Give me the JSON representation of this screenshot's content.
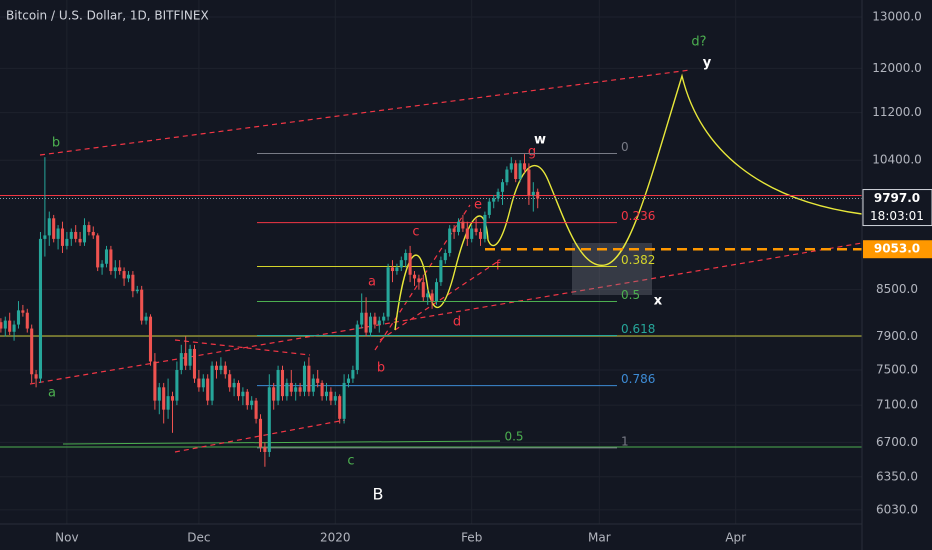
{
  "chart_data": {
    "type": "candlestick",
    "title": "Bitcoin / U.S. Dollar, 1D, BITFINEX",
    "log_scale": true,
    "grid": true,
    "up_color": "#26a69a",
    "down_color": "#ef5350",
    "xlim": [
      -15.2,
      180.7
    ],
    "ylim": [
      5665,
      13350
    ],
    "xticks": [
      {
        "value": 0,
        "label": "Nov"
      },
      {
        "value": 30,
        "label": "Dec"
      },
      {
        "value": 61,
        "label": "2020"
      },
      {
        "value": 92,
        "label": "Feb"
      },
      {
        "value": 121,
        "label": "Mar"
      },
      {
        "value": 152,
        "label": "Apr"
      }
    ],
    "yticks": [
      {
        "value": 13000,
        "label": "13000.0"
      },
      {
        "value": 12000,
        "label": "12000.0"
      },
      {
        "value": 11200,
        "label": "11200.0"
      },
      {
        "value": 10400,
        "label": "10400.0"
      },
      {
        "value": 8500,
        "label": "8500.0"
      },
      {
        "value": 7900,
        "label": "7900.0"
      },
      {
        "value": 7500,
        "label": "7500.0"
      },
      {
        "value": 7100,
        "label": "7100.0"
      },
      {
        "value": 6700,
        "label": "6700.0"
      },
      {
        "value": 6350,
        "label": "6350.0"
      },
      {
        "value": 6030,
        "label": "6030.0"
      }
    ],
    "last_price": {
      "value": 9797,
      "label": "9797.0",
      "countdown": "18:03:01"
    },
    "level": {
      "value": 9053,
      "label": "9053.0",
      "color": "#ff9800"
    },
    "fib_levels": [
      {
        "label": "0",
        "price": 10509,
        "color": "#787b86"
      },
      {
        "label": "0.236",
        "price": 9437,
        "color": "#f23645"
      },
      {
        "label": "0.382",
        "price": 8812,
        "color": "#d4d42a"
      },
      {
        "label": "0.5",
        "price": 8344,
        "color": "#4caf50"
      },
      {
        "label": "0.618",
        "price": 7914,
        "color": "#26a69a"
      },
      {
        "label": "0.786",
        "price": 7319,
        "color": "#3d8bd4"
      },
      {
        "label": "1",
        "price": 6643,
        "color": "#787b86"
      }
    ],
    "annotations": [
      "b",
      "a",
      "c",
      "B",
      "a",
      "b",
      "c",
      "d",
      "e",
      "f",
      "g",
      "w",
      "x",
      "y",
      "d?",
      "0.5"
    ],
    "x": [
      -15,
      -14,
      -13,
      -12,
      -11,
      -10,
      -9,
      -8,
      -7,
      -6,
      -5,
      -4,
      -3,
      -2,
      -1,
      0,
      1,
      2,
      3,
      4,
      5,
      6,
      7,
      8,
      9,
      10,
      11,
      12,
      13,
      14,
      15,
      16,
      17,
      18,
      19,
      20,
      21,
      22,
      23,
      24,
      25,
      26,
      27,
      28,
      29,
      30,
      31,
      32,
      33,
      34,
      35,
      36,
      37,
      38,
      39,
      40,
      41,
      42,
      43,
      44,
      45,
      46,
      47,
      48,
      49,
      50,
      51,
      52,
      53,
      54,
      55,
      56,
      57,
      58,
      59,
      60,
      61,
      62,
      63,
      64,
      65,
      66,
      67,
      68,
      69,
      70,
      71,
      72,
      73,
      74,
      75,
      76,
      77,
      78,
      79,
      80,
      81,
      82,
      83,
      84,
      85,
      86,
      87,
      88,
      89,
      90,
      91,
      92,
      93,
      94,
      95,
      96,
      97,
      98,
      99,
      100,
      101,
      102,
      103,
      104,
      105,
      106,
      107
    ],
    "ohlc": [
      [
        8080,
        8130,
        7950,
        8000
      ],
      [
        8000,
        8150,
        7900,
        8100
      ],
      [
        8100,
        8200,
        7920,
        7960
      ],
      [
        7960,
        8100,
        7850,
        8050
      ],
      [
        8050,
        8350,
        8000,
        8230
      ],
      [
        8230,
        8300,
        8150,
        8200
      ],
      [
        8200,
        8250,
        7950,
        8000
      ],
      [
        8000,
        8050,
        7350,
        7450
      ],
      [
        7450,
        7500,
        7300,
        7400
      ],
      [
        7400,
        9300,
        7350,
        9200
      ],
      [
        9200,
        10450,
        8950,
        9250
      ],
      [
        9250,
        9600,
        9100,
        9500
      ],
      [
        9500,
        9550,
        9150,
        9200
      ],
      [
        9200,
        9400,
        9050,
        9350
      ],
      [
        9350,
        9450,
        9000,
        9100
      ],
      [
        9100,
        9300,
        9050,
        9200
      ],
      [
        9200,
        9350,
        9100,
        9300
      ],
      [
        9300,
        9400,
        9150,
        9200
      ],
      [
        9200,
        9300,
        9100,
        9150
      ],
      [
        9150,
        9500,
        9100,
        9400
      ],
      [
        9400,
        9450,
        9250,
        9300
      ],
      [
        9300,
        9380,
        9200,
        9250
      ],
      [
        9250,
        9280,
        8750,
        8800
      ],
      [
        8800,
        8900,
        8700,
        8850
      ],
      [
        8850,
        9100,
        8800,
        9050
      ],
      [
        9050,
        9100,
        8700,
        8750
      ],
      [
        8750,
        8900,
        8650,
        8800
      ],
      [
        8800,
        8900,
        8700,
        8750
      ],
      [
        8750,
        8800,
        8550,
        8650
      ],
      [
        8650,
        8750,
        8600,
        8700
      ],
      [
        8700,
        8750,
        8400,
        8480
      ],
      [
        8480,
        8550,
        8450,
        8500
      ],
      [
        8500,
        8550,
        8050,
        8100
      ],
      [
        8100,
        8200,
        8050,
        8150
      ],
      [
        8150,
        8180,
        7550,
        7600
      ],
      [
        7600,
        7700,
        7050,
        7150
      ],
      [
        7150,
        7350,
        7000,
        7300
      ],
      [
        7300,
        7350,
        6900,
        7050
      ],
      [
        7050,
        7400,
        6950,
        7200
      ],
      [
        7200,
        7250,
        6800,
        7150
      ],
      [
        7150,
        7600,
        7100,
        7500
      ],
      [
        7500,
        7800,
        7450,
        7700
      ],
      [
        7700,
        7900,
        7500,
        7550
      ],
      [
        7550,
        7800,
        7500,
        7750
      ],
      [
        7750,
        7800,
        7350,
        7400
      ],
      [
        7400,
        7500,
        7250,
        7300
      ],
      [
        7300,
        7450,
        7250,
        7400
      ],
      [
        7400,
        7450,
        7100,
        7150
      ],
      [
        7150,
        7600,
        7100,
        7550
      ],
      [
        7550,
        7600,
        7400,
        7500
      ],
      [
        7500,
        7650,
        7450,
        7550
      ],
      [
        7550,
        7600,
        7400,
        7450
      ],
      [
        7450,
        7500,
        7250,
        7300
      ],
      [
        7300,
        7400,
        7200,
        7350
      ],
      [
        7350,
        7380,
        7150,
        7200
      ],
      [
        7200,
        7300,
        7100,
        7250
      ],
      [
        7250,
        7280,
        7050,
        7100
      ],
      [
        7100,
        7200,
        7050,
        7150
      ],
      [
        7150,
        7180,
        6900,
        6950
      ],
      [
        6950,
        7000,
        6600,
        6650
      ],
      [
        6650,
        6700,
        6450,
        6600
      ],
      [
        6600,
        7450,
        6550,
        7300
      ],
      [
        7300,
        7350,
        7050,
        7150
      ],
      [
        7150,
        7550,
        7100,
        7500
      ],
      [
        7500,
        7550,
        7150,
        7200
      ],
      [
        7200,
        7400,
        7150,
        7350
      ],
      [
        7350,
        7500,
        7200,
        7250
      ],
      [
        7250,
        7350,
        7150,
        7300
      ],
      [
        7300,
        7350,
        7200,
        7250
      ],
      [
        7250,
        7600,
        7200,
        7550
      ],
      [
        7550,
        7650,
        7200,
        7250
      ],
      [
        7250,
        7450,
        7200,
        7400
      ],
      [
        7400,
        7500,
        7300,
        7350
      ],
      [
        7350,
        7380,
        7150,
        7200
      ],
      [
        7200,
        7350,
        7150,
        7250
      ],
      [
        7250,
        7300,
        7100,
        7150
      ],
      [
        7150,
        7250,
        7100,
        7200
      ],
      [
        7200,
        7220,
        6900,
        6950
      ],
      [
        6950,
        7450,
        6900,
        7350
      ],
      [
        7350,
        7450,
        7300,
        7400
      ],
      [
        7400,
        7550,
        7350,
        7500
      ],
      [
        7500,
        8100,
        7450,
        8050
      ],
      [
        8050,
        8450,
        8000,
        8200
      ],
      [
        8200,
        8400,
        7900,
        7950
      ],
      [
        7950,
        8200,
        7900,
        8150
      ],
      [
        8150,
        8200,
        8000,
        8050
      ],
      [
        8050,
        8150,
        7950,
        8100
      ],
      [
        8100,
        8200,
        8050,
        8150
      ],
      [
        8150,
        8850,
        8100,
        8800
      ],
      [
        8800,
        8900,
        8600,
        8750
      ],
      [
        8750,
        8850,
        8700,
        8800
      ],
      [
        8800,
        8950,
        8750,
        8900
      ],
      [
        8900,
        9050,
        8800,
        9000
      ],
      [
        9000,
        9100,
        8600,
        8700
      ],
      [
        8700,
        8750,
        8550,
        8650
      ],
      [
        8650,
        8700,
        8500,
        8600
      ],
      [
        8600,
        8700,
        8350,
        8400
      ],
      [
        8400,
        8500,
        8300,
        8450
      ],
      [
        8450,
        8500,
        8250,
        8350
      ],
      [
        8350,
        8650,
        8300,
        8600
      ],
      [
        8600,
        8950,
        8550,
        8900
      ],
      [
        8900,
        9050,
        8850,
        9000
      ],
      [
        9000,
        9400,
        8950,
        9350
      ],
      [
        9350,
        9400,
        9200,
        9300
      ],
      [
        9300,
        9500,
        9250,
        9450
      ],
      [
        9450,
        9550,
        9300,
        9350
      ],
      [
        9350,
        9450,
        9100,
        9200
      ],
      [
        9200,
        9400,
        9150,
        9350
      ],
      [
        9350,
        9500,
        9250,
        9300
      ],
      [
        9300,
        9350,
        9100,
        9200
      ],
      [
        9200,
        9600,
        9150,
        9550
      ],
      [
        9550,
        9800,
        9500,
        9750
      ],
      [
        9750,
        9850,
        9650,
        9800
      ],
      [
        9800,
        9950,
        9750,
        9900
      ],
      [
        9900,
        10100,
        9700,
        10050
      ],
      [
        10050,
        10300,
        10000,
        10250
      ],
      [
        10250,
        10450,
        10200,
        10350
      ],
      [
        10350,
        10400,
        10050,
        10100
      ],
      [
        10100,
        10400,
        10050,
        10350
      ],
      [
        10350,
        10500,
        10200,
        10250
      ],
      [
        10250,
        10350,
        9700,
        9850
      ],
      [
        9850,
        10050,
        9600,
        9900
      ],
      [
        9900,
        9950,
        9650,
        9797
      ]
    ]
  }
}
